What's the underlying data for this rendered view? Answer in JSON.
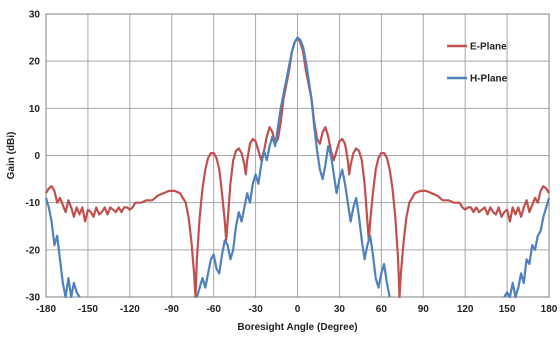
{
  "chart_data": {
    "type": "line",
    "title": "",
    "xlabel": "Boresight Angle (Degree)",
    "ylabel": "Gain (dBi)",
    "xlim": [
      -180,
      180
    ],
    "ylim": [
      -30,
      30
    ],
    "xticks": [
      -180,
      -150,
      -120,
      -90,
      -60,
      -30,
      0,
      30,
      60,
      90,
      120,
      150,
      180
    ],
    "yticks": [
      -30,
      -20,
      -10,
      0,
      10,
      20,
      30
    ],
    "grid": true,
    "legend": "top-right inside",
    "series": [
      {
        "name": "E-Plane",
        "color": "#c0504d",
        "points": [
          [
            -180,
            -8
          ],
          [
            -178,
            -7
          ],
          [
            -176,
            -6.5
          ],
          [
            -174,
            -7.5
          ],
          [
            -172,
            -10
          ],
          [
            -170,
            -9
          ],
          [
            -168,
            -10.5
          ],
          [
            -166,
            -12
          ],
          [
            -164,
            -9.5
          ],
          [
            -162,
            -11
          ],
          [
            -160,
            -13
          ],
          [
            -158,
            -11
          ],
          [
            -156,
            -12.5
          ],
          [
            -154,
            -11
          ],
          [
            -152,
            -14
          ],
          [
            -150,
            -11.5
          ],
          [
            -148,
            -12
          ],
          [
            -146,
            -13
          ],
          [
            -144,
            -11
          ],
          [
            -142,
            -12.5
          ],
          [
            -140,
            -12
          ],
          [
            -138,
            -11
          ],
          [
            -136,
            -12.5
          ],
          [
            -134,
            -11
          ],
          [
            -132,
            -11.5
          ],
          [
            -130,
            -12
          ],
          [
            -128,
            -11
          ],
          [
            -126,
            -12
          ],
          [
            -124,
            -11
          ],
          [
            -122,
            -11
          ],
          [
            -120,
            -11.5
          ],
          [
            -118,
            -11
          ],
          [
            -116,
            -10
          ],
          [
            -112,
            -10
          ],
          [
            -108,
            -9.5
          ],
          [
            -104,
            -9.5
          ],
          [
            -100,
            -8.5
          ],
          [
            -96,
            -8
          ],
          [
            -92,
            -7.5
          ],
          [
            -88,
            -7.5
          ],
          [
            -84,
            -8
          ],
          [
            -80,
            -10
          ],
          [
            -78,
            -13
          ],
          [
            -76,
            -18
          ],
          [
            -74,
            -25
          ],
          [
            -73,
            -30
          ],
          [
            -72,
            -22
          ],
          [
            -70,
            -13
          ],
          [
            -68,
            -7
          ],
          [
            -66,
            -3
          ],
          [
            -64,
            -0.5
          ],
          [
            -62,
            0.5
          ],
          [
            -60,
            0.5
          ],
          [
            -58,
            -0.5
          ],
          [
            -56,
            -3
          ],
          [
            -54,
            -8
          ],
          [
            -52,
            -14
          ],
          [
            -51,
            -18
          ],
          [
            -50,
            -14
          ],
          [
            -48,
            -6
          ],
          [
            -46,
            -1
          ],
          [
            -44,
            1
          ],
          [
            -42,
            1.5
          ],
          [
            -40,
            0.5
          ],
          [
            -38,
            -2
          ],
          [
            -37,
            -4
          ],
          [
            -36,
            -1
          ],
          [
            -34,
            2.5
          ],
          [
            -32,
            3.5
          ],
          [
            -30,
            3
          ],
          [
            -28,
            1
          ],
          [
            -26,
            -1
          ],
          [
            -24,
            1
          ],
          [
            -22,
            4
          ],
          [
            -20,
            6
          ],
          [
            -18,
            5
          ],
          [
            -16,
            2.5
          ],
          [
            -14,
            3.5
          ],
          [
            -12,
            7
          ],
          [
            -10,
            12
          ],
          [
            -8,
            15
          ],
          [
            -6,
            18
          ],
          [
            -4,
            22
          ],
          [
            -2,
            24
          ],
          [
            0,
            25
          ],
          [
            2,
            24
          ],
          [
            4,
            22
          ],
          [
            6,
            18
          ],
          [
            8,
            15
          ],
          [
            10,
            12
          ],
          [
            12,
            7
          ],
          [
            14,
            3.5
          ],
          [
            16,
            2.5
          ],
          [
            18,
            5
          ],
          [
            20,
            6
          ],
          [
            22,
            4
          ],
          [
            24,
            1
          ],
          [
            26,
            -1
          ],
          [
            28,
            1
          ],
          [
            30,
            3
          ],
          [
            32,
            3.5
          ],
          [
            34,
            2.5
          ],
          [
            36,
            -1
          ],
          [
            37,
            -4
          ],
          [
            38,
            -2
          ],
          [
            40,
            0.5
          ],
          [
            42,
            1.5
          ],
          [
            44,
            1
          ],
          [
            46,
            -1
          ],
          [
            48,
            -6
          ],
          [
            50,
            -14
          ],
          [
            51,
            -18
          ],
          [
            52,
            -14
          ],
          [
            54,
            -8
          ],
          [
            56,
            -3
          ],
          [
            58,
            -0.5
          ],
          [
            60,
            0.5
          ],
          [
            62,
            0.5
          ],
          [
            64,
            -0.5
          ],
          [
            66,
            -3
          ],
          [
            68,
            -7
          ],
          [
            70,
            -13
          ],
          [
            72,
            -22
          ],
          [
            73,
            -30
          ],
          [
            74,
            -25
          ],
          [
            76,
            -18
          ],
          [
            78,
            -13
          ],
          [
            80,
            -10
          ],
          [
            84,
            -8
          ],
          [
            88,
            -7.5
          ],
          [
            92,
            -7.5
          ],
          [
            96,
            -8
          ],
          [
            100,
            -8.5
          ],
          [
            104,
            -9.5
          ],
          [
            108,
            -9.5
          ],
          [
            112,
            -10
          ],
          [
            116,
            -10
          ],
          [
            118,
            -11
          ],
          [
            120,
            -11.5
          ],
          [
            122,
            -11
          ],
          [
            124,
            -11
          ],
          [
            126,
            -12
          ],
          [
            128,
            -11
          ],
          [
            130,
            -12
          ],
          [
            132,
            -11.5
          ],
          [
            134,
            -11
          ],
          [
            136,
            -12.5
          ],
          [
            138,
            -11
          ],
          [
            140,
            -12
          ],
          [
            142,
            -12.5
          ],
          [
            144,
            -11
          ],
          [
            146,
            -13
          ],
          [
            148,
            -12
          ],
          [
            150,
            -11.5
          ],
          [
            152,
            -14
          ],
          [
            154,
            -11
          ],
          [
            156,
            -12.5
          ],
          [
            158,
            -11
          ],
          [
            160,
            -13
          ],
          [
            162,
            -11
          ],
          [
            164,
            -9.5
          ],
          [
            166,
            -12
          ],
          [
            168,
            -10.5
          ],
          [
            170,
            -9
          ],
          [
            172,
            -10
          ],
          [
            174,
            -7.5
          ],
          [
            176,
            -6.5
          ],
          [
            178,
            -7
          ],
          [
            180,
            -8
          ]
        ]
      },
      {
        "name": "H-Plane",
        "color": "#4f81bd",
        "points": [
          [
            -180,
            -9
          ],
          [
            -178,
            -11
          ],
          [
            -176,
            -14
          ],
          [
            -174,
            -19
          ],
          [
            -172,
            -17
          ],
          [
            -170,
            -22
          ],
          [
            -168,
            -27
          ],
          [
            -166,
            -30
          ],
          [
            -164,
            -26
          ],
          [
            -162,
            -30
          ],
          [
            -160,
            -27
          ],
          [
            -158,
            -29
          ],
          [
            -156,
            -30
          ],
          null,
          [
            -72,
            -30
          ],
          [
            -70,
            -28
          ],
          [
            -68,
            -26
          ],
          [
            -66,
            -28
          ],
          [
            -64,
            -25
          ],
          [
            -62,
            -22
          ],
          [
            -60,
            -21
          ],
          [
            -58,
            -24
          ],
          [
            -56,
            -25
          ],
          [
            -54,
            -21
          ],
          [
            -52,
            -18
          ],
          [
            -50,
            -19
          ],
          [
            -48,
            -22
          ],
          [
            -46,
            -20
          ],
          [
            -44,
            -15
          ],
          [
            -42,
            -12
          ],
          [
            -40,
            -14
          ],
          [
            -38,
            -11
          ],
          [
            -36,
            -8
          ],
          [
            -34,
            -10
          ],
          [
            -32,
            -6
          ],
          [
            -30,
            -4
          ],
          [
            -28,
            -6
          ],
          [
            -26,
            -2
          ],
          [
            -24,
            1
          ],
          [
            -22,
            -1
          ],
          [
            -20,
            2
          ],
          [
            -18,
            4
          ],
          [
            -16,
            2
          ],
          [
            -14,
            6
          ],
          [
            -12,
            10
          ],
          [
            -10,
            13
          ],
          [
            -8,
            16
          ],
          [
            -6,
            19
          ],
          [
            -4,
            22
          ],
          [
            -2,
            24
          ],
          [
            0,
            25
          ],
          [
            2,
            24.5
          ],
          [
            4,
            23
          ],
          [
            6,
            20
          ],
          [
            8,
            16
          ],
          [
            10,
            12
          ],
          [
            12,
            6
          ],
          [
            14,
            1
          ],
          [
            16,
            -3
          ],
          [
            18,
            -5
          ],
          [
            20,
            -2
          ],
          [
            22,
            2
          ],
          [
            24,
            0
          ],
          [
            26,
            -4
          ],
          [
            28,
            -8
          ],
          [
            30,
            -5
          ],
          [
            32,
            -3
          ],
          [
            34,
            -6
          ],
          [
            36,
            -10
          ],
          [
            38,
            -14
          ],
          [
            40,
            -11
          ],
          [
            42,
            -9
          ],
          [
            44,
            -13
          ],
          [
            46,
            -18
          ],
          [
            48,
            -22
          ],
          [
            50,
            -19
          ],
          [
            52,
            -17
          ],
          [
            54,
            -21
          ],
          [
            56,
            -26
          ],
          [
            58,
            -28
          ],
          [
            60,
            -25
          ],
          [
            62,
            -23
          ],
          [
            64,
            -27
          ],
          [
            66,
            -30
          ],
          null,
          [
            148,
            -30
          ],
          [
            150,
            -29
          ],
          [
            152,
            -30
          ],
          [
            154,
            -27
          ],
          [
            156,
            -30
          ],
          [
            158,
            -28
          ],
          [
            160,
            -25
          ],
          [
            162,
            -27
          ],
          [
            164,
            -22
          ],
          [
            166,
            -23
          ],
          [
            168,
            -19
          ],
          [
            170,
            -20
          ],
          [
            172,
            -17
          ],
          [
            174,
            -16
          ],
          [
            176,
            -13
          ],
          [
            178,
            -11
          ],
          [
            180,
            -9
          ]
        ]
      }
    ]
  }
}
